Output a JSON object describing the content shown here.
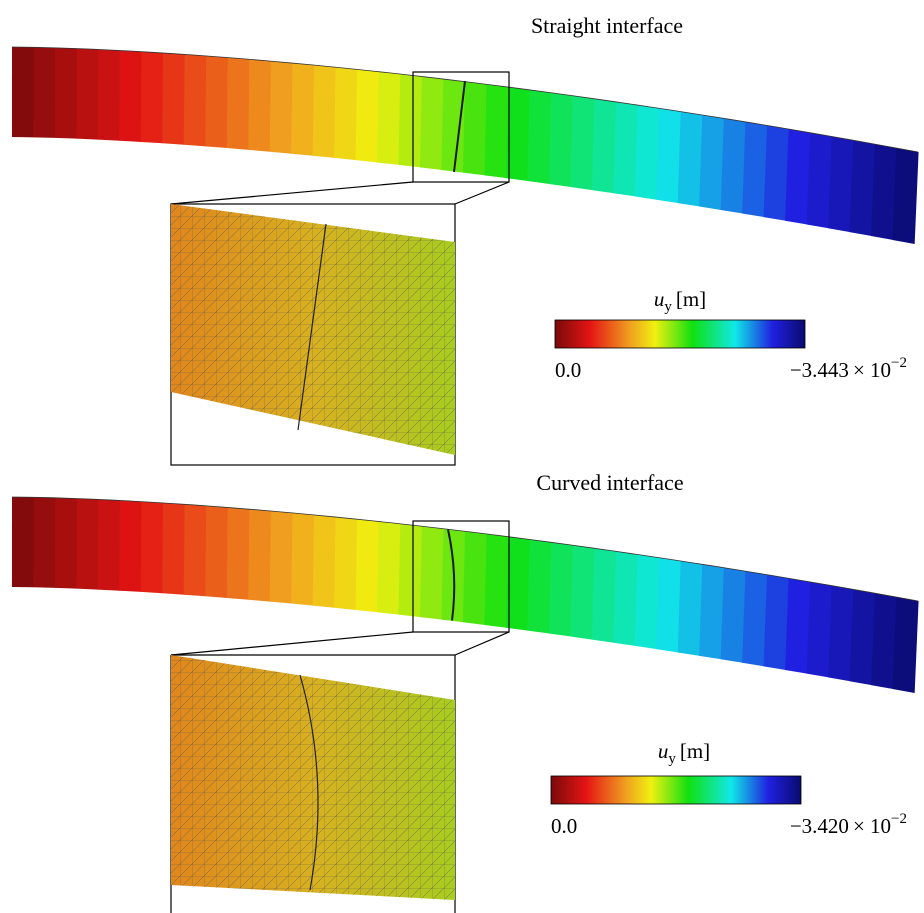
{
  "panels": [
    {
      "title": "Straight interface",
      "interface": "straight",
      "colorbar": {
        "quantity_symbol": "u",
        "quantity_subscript": "y",
        "unit": "[m]",
        "min_label": "0.0",
        "max_mantissa": "−3.443",
        "max_exponent_base": "× 10",
        "max_exponent": "−2"
      }
    },
    {
      "title": "Curved interface",
      "interface": "curved",
      "colorbar": {
        "quantity_symbol": "u",
        "quantity_subscript": "y",
        "unit": "[m]",
        "min_label": "0.0",
        "max_mantissa": "−3.420",
        "max_exponent_base": "× 10",
        "max_exponent": "−2"
      }
    }
  ],
  "colormap": [
    "#7a0a0a",
    "#e41414",
    "#f0a020",
    "#f0f010",
    "#10e010",
    "#10e8e8",
    "#2020e0",
    "#0a0a70"
  ]
}
